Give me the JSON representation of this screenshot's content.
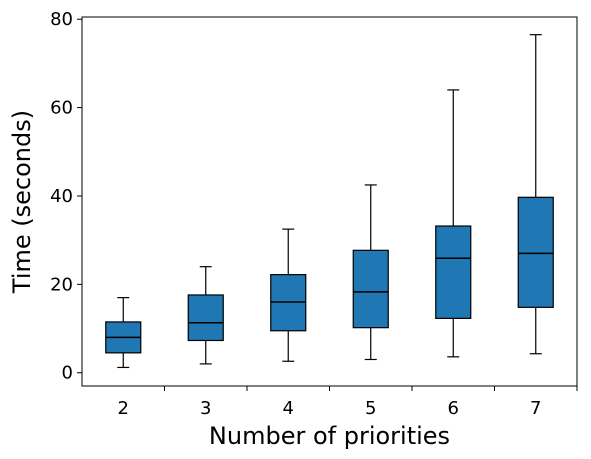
{
  "chart_data": {
    "type": "box",
    "title": "",
    "xlabel": "Number of priorities",
    "ylabel": "Time (seconds)",
    "categories": [
      "2",
      "3",
      "4",
      "5",
      "6",
      "7"
    ],
    "ylim": [
      -3,
      80.5
    ],
    "yticks": [
      0,
      20,
      40,
      60,
      80
    ],
    "grid": false,
    "box_color": "#1f77b4",
    "boxes": [
      {
        "category": "2",
        "whisker_low": 1.2,
        "q1": 4.5,
        "median": 8.0,
        "q3": 11.5,
        "whisker_high": 17.0
      },
      {
        "category": "3",
        "whisker_low": 2.0,
        "q1": 7.3,
        "median": 11.3,
        "q3": 17.6,
        "whisker_high": 24.0
      },
      {
        "category": "4",
        "whisker_low": 2.6,
        "q1": 9.5,
        "median": 16.0,
        "q3": 22.2,
        "whisker_high": 32.5
      },
      {
        "category": "5",
        "whisker_low": 3.0,
        "q1": 10.2,
        "median": 18.3,
        "q3": 27.7,
        "whisker_high": 42.5
      },
      {
        "category": "6",
        "whisker_low": 3.6,
        "q1": 12.3,
        "median": 25.9,
        "q3": 33.2,
        "whisker_high": 64.0
      },
      {
        "category": "7",
        "whisker_low": 4.3,
        "q1": 14.8,
        "median": 27.0,
        "q3": 39.7,
        "whisker_high": 76.5
      }
    ]
  }
}
